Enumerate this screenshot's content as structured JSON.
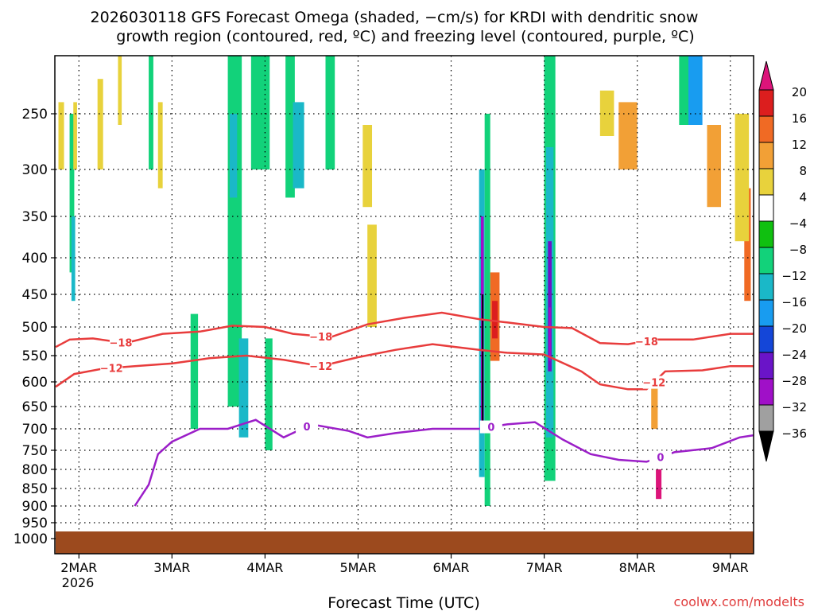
{
  "chart_data": {
    "type": "heatmap",
    "title_lines": [
      "2026030118 GFS Forecast Omega (shaded, −cm/s) for KRDI with dendritic snow",
      "growth region (contoured, red, ºC) and freezing level (contoured, purple, ºC)"
    ],
    "xlabel": "Forecast Time (UTC)",
    "ylabel": "",
    "watermark": "coolwx.com/modelts",
    "x_ticks": [
      "2MAR",
      "3MAR",
      "4MAR",
      "5MAR",
      "6MAR",
      "7MAR",
      "8MAR",
      "9MAR"
    ],
    "x_year": "2026",
    "y_ticks": [
      250,
      300,
      350,
      400,
      450,
      500,
      550,
      600,
      650,
      700,
      750,
      800,
      850,
      900,
      950,
      1000
    ],
    "y_tick_labels": [
      "250",
      "300",
      "350",
      "400",
      "450",
      "500",
      "550",
      "600",
      "650",
      "700",
      "750",
      "800",
      "850",
      "900",
      "950",
      "1000"
    ],
    "x_range_days": [
      1.75,
      9.25
    ],
    "y_range_hpa": [
      200,
      1025
    ],
    "colorbar": {
      "labels": [
        "20",
        "16",
        "12",
        "8",
        "4",
        "−4",
        "−8",
        "−12",
        "−16",
        "−20",
        "−24",
        "−28",
        "−32",
        "−36"
      ],
      "colors": [
        "#dc1e1e",
        "#f06a24",
        "#f2a036",
        "#e8d23c",
        "#ffffff",
        "#10c010",
        "#12d27a",
        "#1ab8c8",
        "#189cf0",
        "#1446d8",
        "#6a14c8",
        "#a010c8",
        "#a0a0a0"
      ],
      "top_arrow": "#dc147a",
      "bottom_arrow": "#000000"
    },
    "omega_cells": [
      {
        "t0": 1.78,
        "t1": 1.84,
        "p0": 240,
        "p1": 300,
        "v": 6
      },
      {
        "t0": 1.9,
        "t1": 1.95,
        "p0": 250,
        "p1": 420,
        "v": -8
      },
      {
        "t0": 1.92,
        "t1": 1.96,
        "p0": 350,
        "p1": 460,
        "v": -12
      },
      {
        "t0": 1.94,
        "t1": 1.98,
        "p0": 240,
        "p1": 300,
        "v": 5
      },
      {
        "t0": 2.2,
        "t1": 2.26,
        "p0": 220,
        "p1": 300,
        "v": 5
      },
      {
        "t0": 2.42,
        "t1": 2.46,
        "p0": 200,
        "p1": 260,
        "v": 5
      },
      {
        "t0": 2.75,
        "t1": 2.8,
        "p0": 200,
        "p1": 300,
        "v": -8
      },
      {
        "t0": 2.85,
        "t1": 2.9,
        "p0": 240,
        "p1": 320,
        "v": 5
      },
      {
        "t0": 3.2,
        "t1": 3.28,
        "p0": 480,
        "p1": 700,
        "v": -8
      },
      {
        "t0": 3.6,
        "t1": 3.75,
        "p0": 200,
        "p1": 650,
        "v": -8
      },
      {
        "t0": 3.62,
        "t1": 3.7,
        "p0": 250,
        "p1": 330,
        "v": -12
      },
      {
        "t0": 3.72,
        "t1": 3.82,
        "p0": 520,
        "p1": 720,
        "v": -12
      },
      {
        "t0": 3.85,
        "t1": 4.05,
        "p0": 200,
        "p1": 300,
        "v": -8
      },
      {
        "t0": 4.0,
        "t1": 4.08,
        "p0": 520,
        "p1": 750,
        "v": -8
      },
      {
        "t0": 4.22,
        "t1": 4.32,
        "p0": 200,
        "p1": 330,
        "v": -8
      },
      {
        "t0": 4.3,
        "t1": 4.42,
        "p0": 240,
        "p1": 320,
        "v": -12
      },
      {
        "t0": 4.65,
        "t1": 4.75,
        "p0": 200,
        "p1": 300,
        "v": -8
      },
      {
        "t0": 5.05,
        "t1": 5.15,
        "p0": 260,
        "p1": 340,
        "v": 5
      },
      {
        "t0": 5.1,
        "t1": 5.2,
        "p0": 360,
        "p1": 500,
        "v": 6
      },
      {
        "t0": 6.3,
        "t1": 6.36,
        "p0": 300,
        "p1": 820,
        "v": -12
      },
      {
        "t0": 6.32,
        "t1": 6.35,
        "p0": 350,
        "p1": 700,
        "v": -28
      },
      {
        "t0": 6.33,
        "t1": 6.345,
        "p0": 450,
        "p1": 700,
        "v": -36
      },
      {
        "t0": 6.36,
        "t1": 6.42,
        "p0": 250,
        "p1": 900,
        "v": -8
      },
      {
        "t0": 6.42,
        "t1": 6.52,
        "p0": 420,
        "p1": 560,
        "v": 14
      },
      {
        "t0": 6.44,
        "t1": 6.5,
        "p0": 460,
        "p1": 520,
        "v": 18
      },
      {
        "t0": 7.0,
        "t1": 7.12,
        "p0": 200,
        "p1": 830,
        "v": -8
      },
      {
        "t0": 7.02,
        "t1": 7.1,
        "p0": 280,
        "p1": 720,
        "v": -12
      },
      {
        "t0": 7.04,
        "t1": 7.08,
        "p0": 380,
        "p1": 580,
        "v": -24
      },
      {
        "t0": 7.05,
        "t1": 7.07,
        "p0": 470,
        "p1": 560,
        "v": -28
      },
      {
        "t0": 7.6,
        "t1": 7.75,
        "p0": 230,
        "p1": 270,
        "v": 6
      },
      {
        "t0": 7.8,
        "t1": 8.0,
        "p0": 240,
        "p1": 300,
        "v": 10
      },
      {
        "t0": 8.2,
        "t1": 8.26,
        "p0": 800,
        "p1": 880,
        "v": 22
      },
      {
        "t0": 8.15,
        "t1": 8.22,
        "p0": 600,
        "p1": 700,
        "v": 10
      },
      {
        "t0": 8.45,
        "t1": 8.6,
        "p0": 200,
        "p1": 260,
        "v": -8
      },
      {
        "t0": 8.55,
        "t1": 8.7,
        "p0": 200,
        "p1": 260,
        "v": -16
      },
      {
        "t0": 8.75,
        "t1": 8.9,
        "p0": 260,
        "p1": 340,
        "v": 10
      },
      {
        "t0": 9.15,
        "t1": 9.22,
        "p0": 320,
        "p1": 460,
        "v": 12
      },
      {
        "t0": 9.05,
        "t1": 9.2,
        "p0": 250,
        "p1": 380,
        "v": 6
      }
    ],
    "contours": [
      {
        "name": "dgz-top",
        "label": "−18",
        "color": "#e83c3c",
        "points": [
          [
            1.75,
            535
          ],
          [
            1.9,
            522
          ],
          [
            2.15,
            520
          ],
          [
            2.5,
            528
          ],
          [
            2.9,
            512
          ],
          [
            3.3,
            508
          ],
          [
            3.65,
            498
          ],
          [
            4.0,
            500
          ],
          [
            4.3,
            512
          ],
          [
            4.7,
            518
          ],
          [
            5.1,
            496
          ],
          [
            5.5,
            486
          ],
          [
            5.9,
            478
          ],
          [
            6.3,
            488
          ],
          [
            6.6,
            493
          ],
          [
            7.0,
            500
          ],
          [
            7.3,
            502
          ],
          [
            7.6,
            528
          ],
          [
            7.9,
            530
          ],
          [
            8.2,
            522
          ],
          [
            8.6,
            522
          ],
          [
            9.0,
            512
          ],
          [
            9.25,
            512
          ]
        ],
        "label_positions": [
          [
            2.45,
            0.5
          ],
          [
            4.6,
            0.5
          ],
          [
            8.1,
            0.5
          ]
        ]
      },
      {
        "name": "dgz-bottom",
        "label": "−12",
        "color": "#e83c3c",
        "points": [
          [
            1.75,
            610
          ],
          [
            1.95,
            585
          ],
          [
            2.25,
            575
          ],
          [
            2.6,
            570
          ],
          [
            3.0,
            565
          ],
          [
            3.4,
            555
          ],
          [
            3.8,
            550
          ],
          [
            4.2,
            558
          ],
          [
            4.6,
            570
          ],
          [
            5.0,
            553
          ],
          [
            5.4,
            540
          ],
          [
            5.8,
            530
          ],
          [
            6.3,
            540
          ],
          [
            6.6,
            545
          ],
          [
            7.0,
            548
          ],
          [
            7.4,
            580
          ],
          [
            7.6,
            605
          ],
          [
            7.9,
            615
          ],
          [
            8.1,
            615
          ],
          [
            8.3,
            580
          ],
          [
            8.7,
            578
          ],
          [
            9.0,
            570
          ],
          [
            9.25,
            570
          ]
        ],
        "label_positions": [
          [
            2.35,
            0.5
          ],
          [
            4.6,
            0.5
          ],
          [
            8.18,
            0.5
          ]
        ]
      },
      {
        "name": "freezing-level",
        "label": "0",
        "color": "#9b1ec8",
        "points": [
          [
            2.6,
            900
          ],
          [
            2.75,
            840
          ],
          [
            2.85,
            760
          ],
          [
            3.0,
            730
          ],
          [
            3.3,
            700
          ],
          [
            3.6,
            700
          ],
          [
            3.9,
            680
          ],
          [
            4.2,
            720
          ],
          [
            4.5,
            690
          ],
          [
            4.9,
            705
          ],
          [
            5.1,
            720
          ],
          [
            5.4,
            710
          ],
          [
            5.8,
            700
          ],
          [
            6.3,
            700
          ],
          [
            6.6,
            690
          ],
          [
            6.9,
            685
          ],
          [
            7.2,
            725
          ],
          [
            7.5,
            760
          ],
          [
            7.8,
            775
          ],
          [
            8.1,
            780
          ],
          [
            8.4,
            755
          ],
          [
            8.8,
            745
          ],
          [
            9.1,
            720
          ],
          [
            9.25,
            715
          ]
        ],
        "label_positions": [
          [
            4.45,
            0.5
          ],
          [
            6.43,
            0.5
          ],
          [
            8.25,
            0.5
          ]
        ]
      }
    ]
  }
}
